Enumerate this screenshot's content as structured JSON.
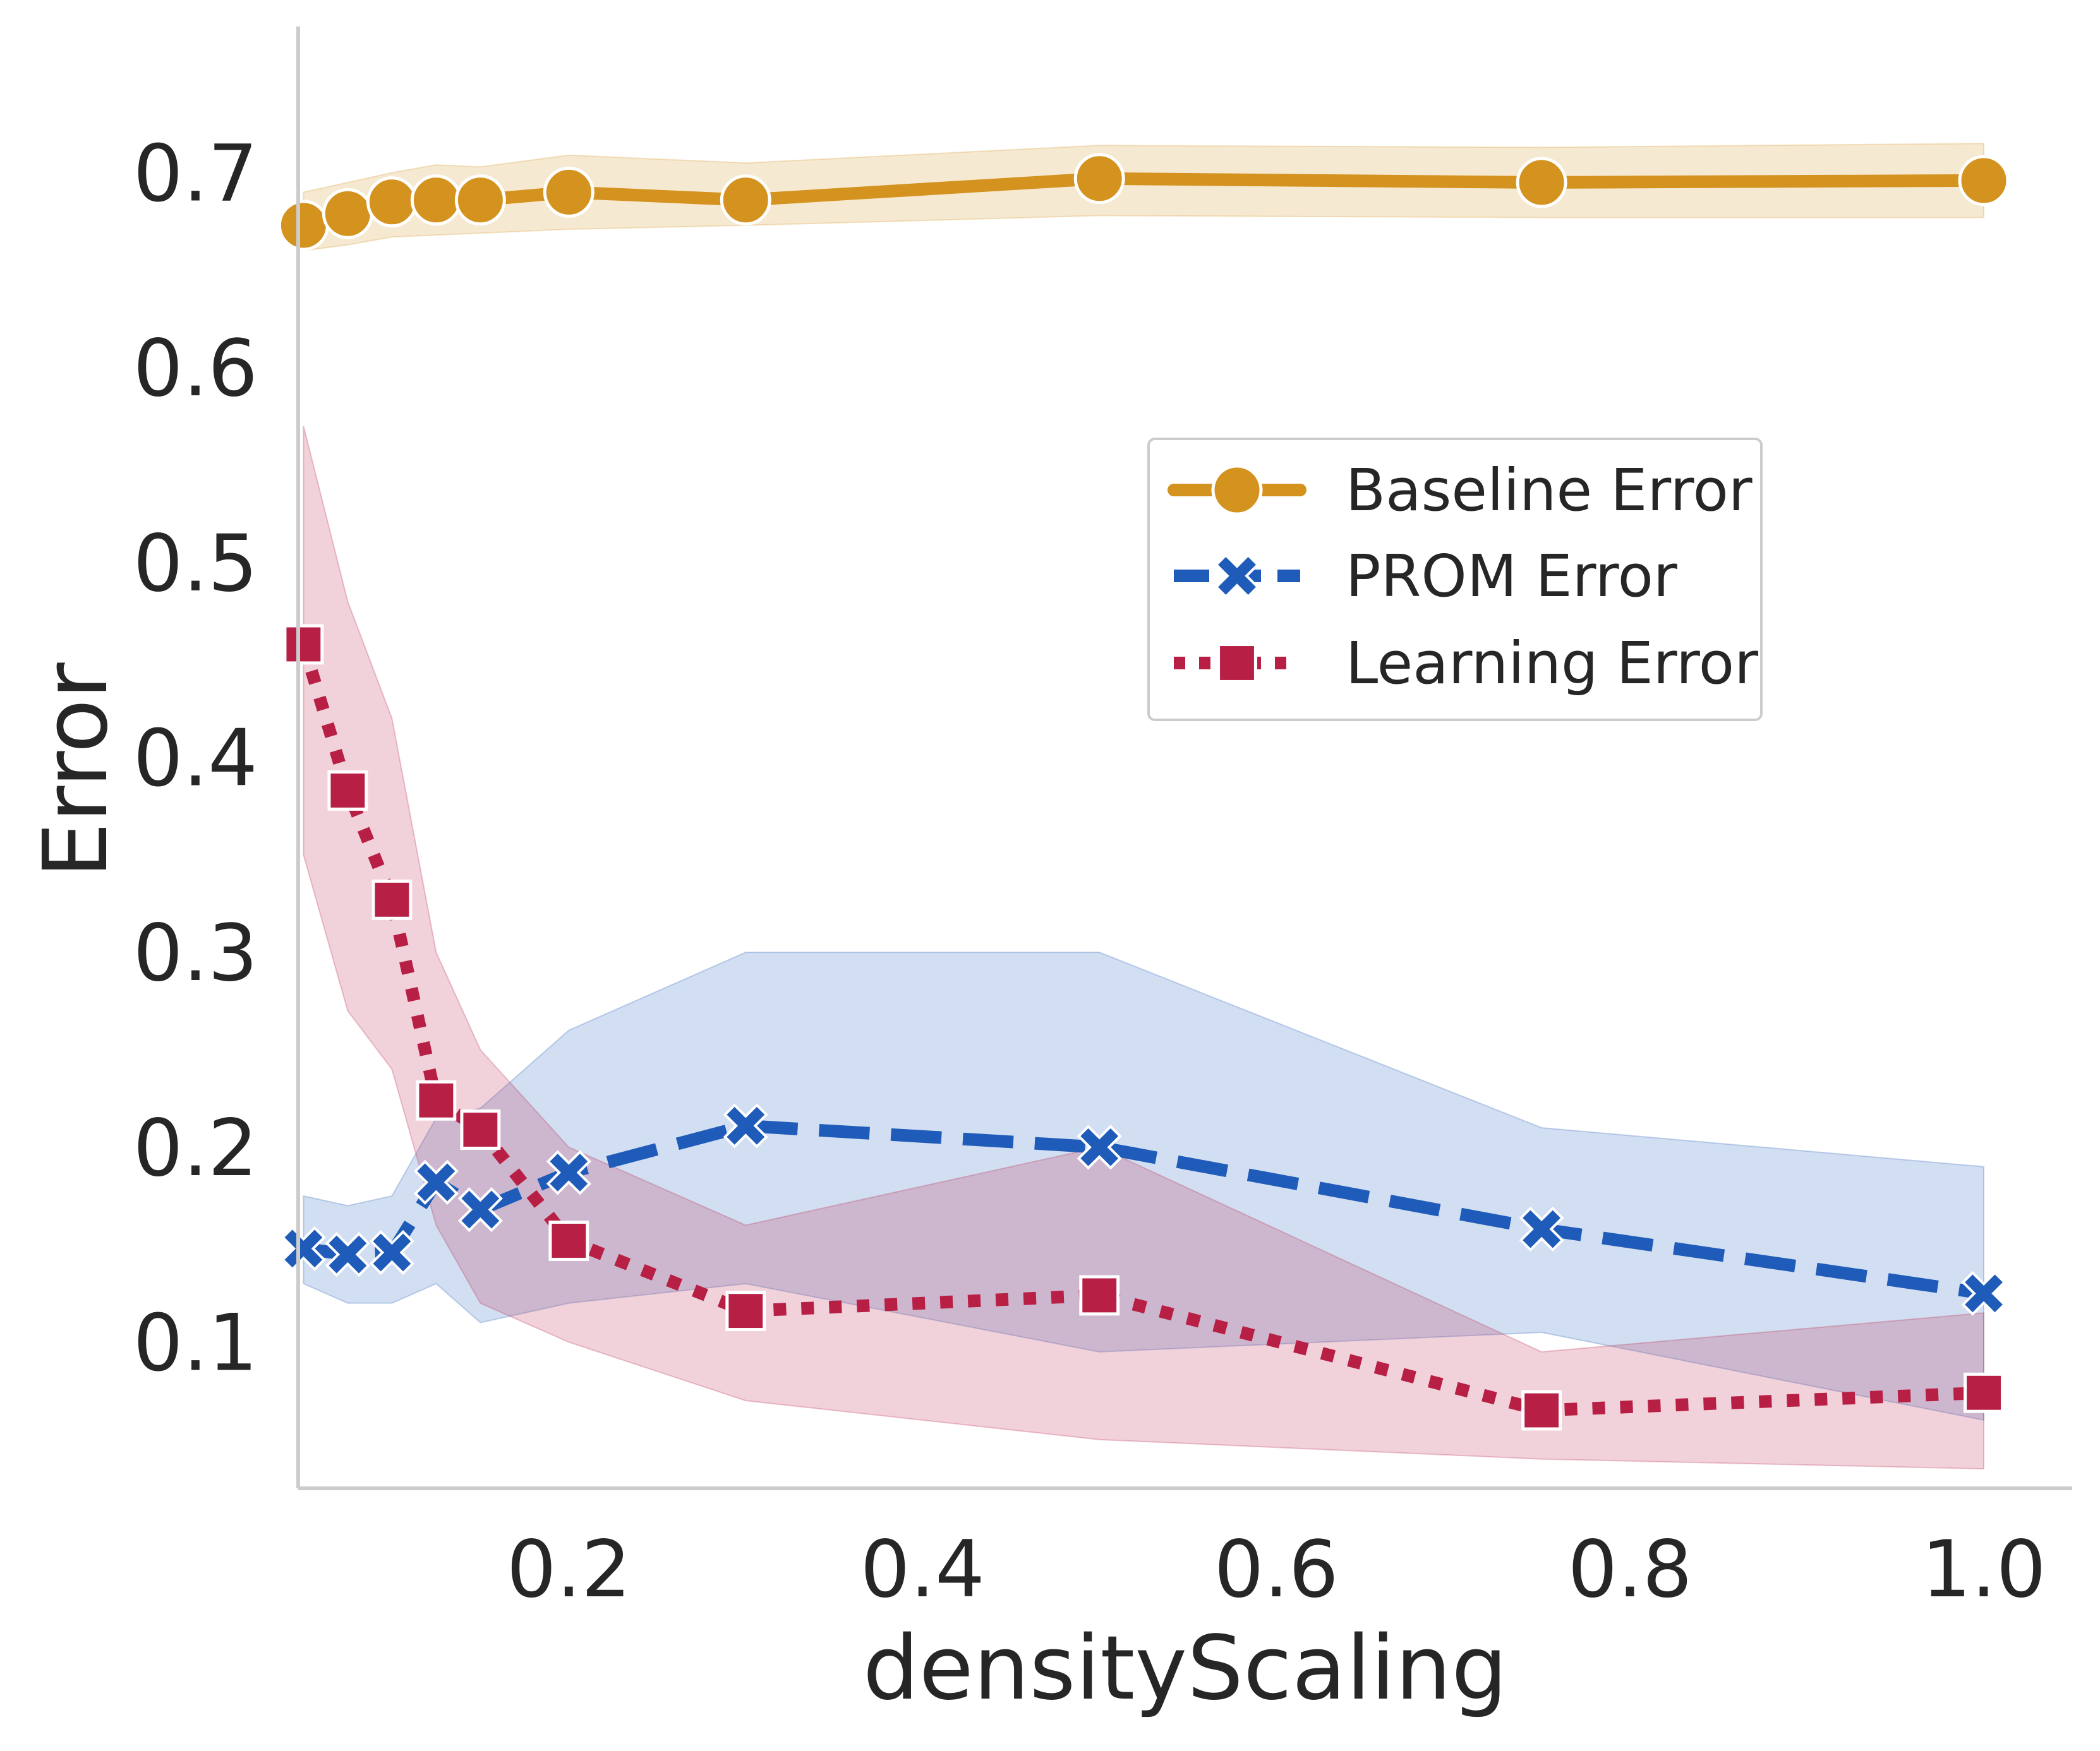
{
  "chart_data": {
    "type": "line",
    "title": "",
    "xlabel": "densityScaling",
    "ylabel": "Error",
    "xlim": [
      0.047,
      1.05
    ],
    "ylim": [
      0.025,
      0.775
    ],
    "xticks": [
      0.2,
      0.4,
      0.6,
      0.8,
      1.0
    ],
    "xtick_labels": [
      "0.2",
      "0.4",
      "0.6",
      "0.8",
      "1.0"
    ],
    "yticks": [
      0.1,
      0.2,
      0.3,
      0.4,
      0.5,
      0.6,
      0.7
    ],
    "ytick_labels": [
      "0.1",
      "0.2",
      "0.3",
      "0.4",
      "0.5",
      "0.6",
      "0.7"
    ],
    "grid": false,
    "legend_position": "center-right",
    "x": [
      0.05,
      0.075,
      0.1,
      0.125,
      0.15,
      0.2,
      0.3,
      0.5,
      0.75,
      1.0
    ],
    "series": [
      {
        "name": "Baseline Error",
        "color": "#D4921F",
        "marker": "circle",
        "linestyle": "solid",
        "values": [
          0.673,
          0.679,
          0.685,
          0.686,
          0.686,
          0.69,
          0.686,
          0.697,
          0.695,
          0.696
        ],
        "band_lower": [
          0.66,
          0.663,
          0.667,
          0.668,
          0.669,
          0.671,
          0.673,
          0.678,
          0.677,
          0.677
        ],
        "band_upper": [
          0.69,
          0.695,
          0.7,
          0.704,
          0.703,
          0.709,
          0.705,
          0.714,
          0.713,
          0.715
        ]
      },
      {
        "name": "PROM Error",
        "color": "#1F5BB8",
        "marker": "x",
        "linestyle": "dashed",
        "values": [
          0.148,
          0.145,
          0.146,
          0.182,
          0.168,
          0.187,
          0.211,
          0.2,
          0.158,
          0.125
        ],
        "band_lower": [
          0.13,
          0.12,
          0.12,
          0.13,
          0.11,
          0.12,
          0.13,
          0.095,
          0.105,
          0.06
        ],
        "band_upper": [
          0.175,
          0.17,
          0.175,
          0.215,
          0.22,
          0.26,
          0.3,
          0.3,
          0.21,
          0.19
        ]
      },
      {
        "name": "Learning Error",
        "color": "#B81F45",
        "marker": "square",
        "linestyle": "dotted",
        "values": [
          0.458,
          0.383,
          0.327,
          0.224,
          0.209,
          0.152,
          0.116,
          0.124,
          0.065,
          0.074
        ],
        "band_lower": [
          0.35,
          0.27,
          0.24,
          0.16,
          0.12,
          0.1,
          0.07,
          0.05,
          0.04,
          0.035
        ],
        "band_upper": [
          0.57,
          0.48,
          0.42,
          0.3,
          0.25,
          0.2,
          0.16,
          0.2,
          0.095,
          0.115
        ]
      }
    ]
  }
}
